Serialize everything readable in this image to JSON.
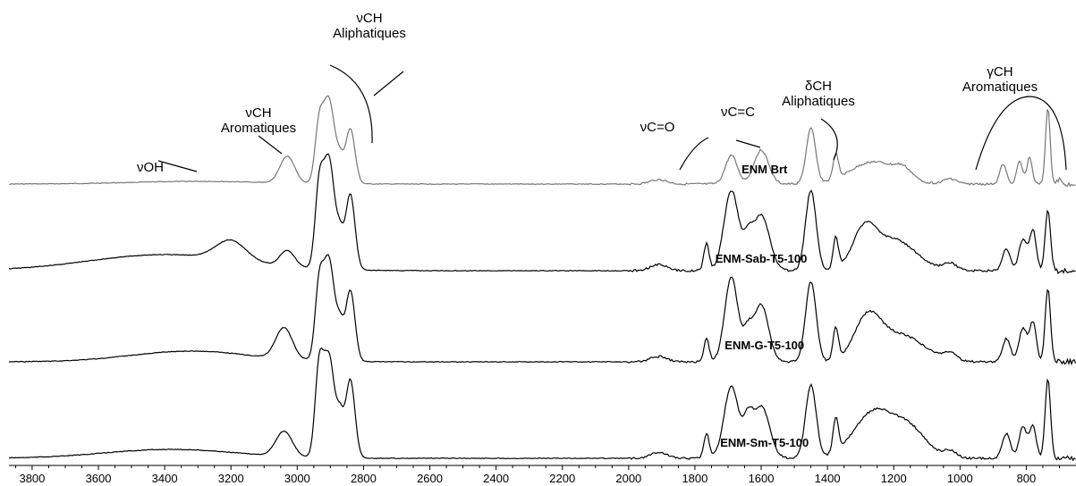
{
  "chart_data": {
    "type": "line",
    "title": "",
    "xlabel": "",
    "ylabel": "",
    "x_reversed": true,
    "xlim": [
      3870,
      650
    ],
    "x_ticks": [
      3800,
      3600,
      3400,
      3200,
      3000,
      2800,
      2600,
      2400,
      2200,
      2000,
      1800,
      1600,
      1400,
      1200,
      1000,
      800
    ],
    "x_tick_labels": [
      "3800",
      "3600",
      "3400",
      "3200",
      "3000",
      "2800",
      "2600",
      "2400",
      "2200",
      "2000",
      "1800",
      "1600",
      "1400",
      "1200",
      "1000",
      "800"
    ],
    "grid": false,
    "series": [
      {
        "name": "ENM Brt",
        "color": "#777777",
        "label_x": 1590,
        "peaks": [
          [
            3300,
            3,
            200
          ],
          [
            3030,
            30,
            22
          ],
          [
            2935,
            55,
            12
          ],
          [
            2905,
            95,
            18
          ],
          [
            2870,
            20,
            10
          ],
          [
            2840,
            62,
            14
          ],
          [
            1910,
            5,
            25
          ],
          [
            1690,
            32,
            18
          ],
          [
            1600,
            38,
            22
          ],
          [
            1450,
            62,
            14
          ],
          [
            1375,
            28,
            8
          ],
          [
            1260,
            25,
            70
          ],
          [
            1170,
            10,
            25
          ],
          [
            1030,
            6,
            20
          ],
          [
            870,
            22,
            10
          ],
          [
            820,
            25,
            9
          ],
          [
            790,
            30,
            8
          ],
          [
            735,
            85,
            7
          ],
          [
            700,
            5,
            6
          ]
        ]
      },
      {
        "name": "ENM-Sab-T5-100",
        "color": "#000000",
        "label_x": 1600,
        "peaks": [
          [
            3400,
            18,
            230
          ],
          [
            3200,
            22,
            45
          ],
          [
            3030,
            18,
            22
          ],
          [
            2935,
            75,
            12
          ],
          [
            2905,
            125,
            18
          ],
          [
            2870,
            28,
            10
          ],
          [
            2840,
            85,
            14
          ],
          [
            1910,
            7,
            25
          ],
          [
            1765,
            30,
            8
          ],
          [
            1690,
            90,
            22
          ],
          [
            1640,
            28,
            14
          ],
          [
            1600,
            62,
            25
          ],
          [
            1450,
            90,
            16
          ],
          [
            1375,
            35,
            8
          ],
          [
            1290,
            40,
            35
          ],
          [
            1200,
            35,
            65
          ],
          [
            1030,
            8,
            20
          ],
          [
            860,
            24,
            12
          ],
          [
            810,
            35,
            12
          ],
          [
            780,
            45,
            10
          ],
          [
            735,
            68,
            8
          ]
        ]
      },
      {
        "name": "ENM-G-T5-100",
        "color": "#000000",
        "label_x": 1590,
        "peaks": [
          [
            3320,
            12,
            180
          ],
          [
            3040,
            35,
            25
          ],
          [
            2935,
            70,
            12
          ],
          [
            2905,
            115,
            18
          ],
          [
            2870,
            30,
            10
          ],
          [
            2840,
            80,
            14
          ],
          [
            1910,
            6,
            25
          ],
          [
            1765,
            26,
            8
          ],
          [
            1690,
            95,
            20
          ],
          [
            1640,
            30,
            14
          ],
          [
            1600,
            64,
            22
          ],
          [
            1450,
            90,
            16
          ],
          [
            1375,
            36,
            8
          ],
          [
            1280,
            45,
            40
          ],
          [
            1180,
            30,
            70
          ],
          [
            1030,
            8,
            20
          ],
          [
            860,
            26,
            12
          ],
          [
            810,
            38,
            12
          ],
          [
            780,
            44,
            10
          ],
          [
            735,
            82,
            8
          ]
        ]
      },
      {
        "name": "ENM-Sm-T5-100",
        "color": "#000000",
        "label_x": 1590,
        "peaks": [
          [
            3380,
            10,
            200
          ],
          [
            3040,
            28,
            25
          ],
          [
            2935,
            85,
            12
          ],
          [
            2905,
            115,
            18
          ],
          [
            2870,
            35,
            10
          ],
          [
            2840,
            88,
            14
          ],
          [
            1910,
            7,
            25
          ],
          [
            1765,
            28,
            8
          ],
          [
            1690,
            80,
            22
          ],
          [
            1640,
            35,
            14
          ],
          [
            1600,
            58,
            25
          ],
          [
            1450,
            82,
            16
          ],
          [
            1375,
            38,
            8
          ],
          [
            1260,
            52,
            60
          ],
          [
            1150,
            30,
            50
          ],
          [
            1030,
            8,
            20
          ],
          [
            860,
            28,
            12
          ],
          [
            810,
            35,
            12
          ],
          [
            780,
            35,
            10
          ],
          [
            735,
            90,
            8
          ]
        ]
      }
    ],
    "annotations": [
      {
        "lines": [
          "νOH"
        ],
        "x": 3345
      },
      {
        "lines": [
          "νCH",
          "Aromatiques"
        ],
        "x": 3175
      },
      {
        "lines": [
          "νCH",
          "Aliphatiques"
        ],
        "x": 2795
      },
      {
        "lines": [
          "νC=O"
        ],
        "x": 1715
      },
      {
        "lines": [
          "νC=C"
        ],
        "x": 1600
      },
      {
        "lines": [
          "δCH",
          "Aliphatiques"
        ],
        "x": 1330
      },
      {
        "lines": [
          "γCH",
          "Aromatiques"
        ],
        "x": 770
      }
    ]
  }
}
